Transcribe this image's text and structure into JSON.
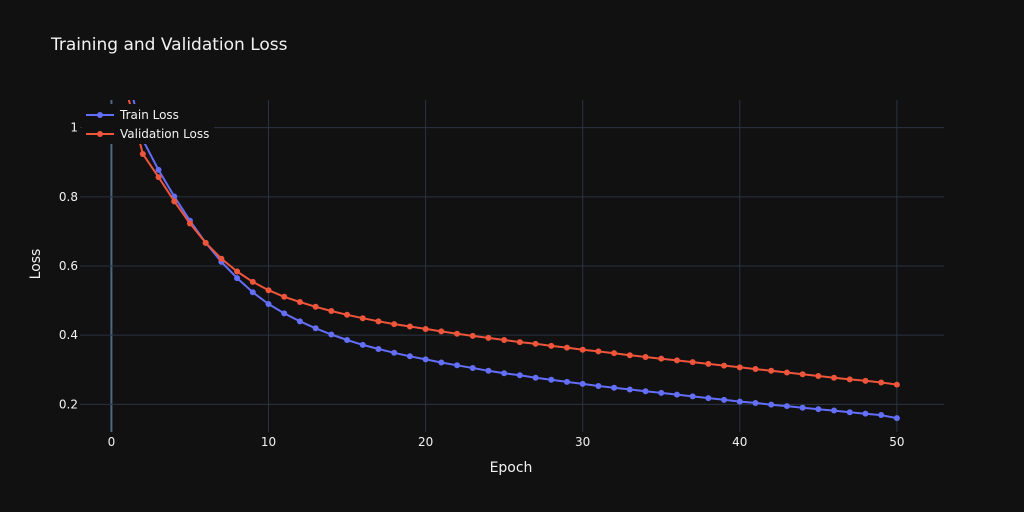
{
  "chart_data": {
    "type": "line",
    "title": "Training and Validation Loss",
    "xlabel": "Epoch",
    "ylabel": "Loss",
    "xlim": [
      -2,
      53
    ],
    "ylim": [
      0.12,
      1.08
    ],
    "xticks": [
      0,
      10,
      20,
      30,
      40,
      50
    ],
    "yticks": [
      0.2,
      0.4,
      0.6,
      0.8,
      1
    ],
    "ytick_labels": [
      "0.2",
      "0.4",
      "0.6",
      "0.8",
      "1"
    ],
    "grid": true,
    "legend_position": "top-left",
    "x": [
      1,
      2,
      3,
      4,
      5,
      6,
      7,
      8,
      9,
      10,
      11,
      12,
      13,
      14,
      15,
      16,
      17,
      18,
      19,
      20,
      21,
      22,
      23,
      24,
      25,
      26,
      27,
      28,
      29,
      30,
      31,
      32,
      33,
      34,
      35,
      36,
      37,
      38,
      39,
      40,
      41,
      42,
      43,
      44,
      45,
      46,
      47,
      48,
      49,
      50
    ],
    "series": [
      {
        "name": "Train Loss",
        "color": "#636efa",
        "values": [
          1.16,
          0.965,
          0.878,
          0.801,
          0.731,
          0.667,
          0.612,
          0.565,
          0.524,
          0.49,
          0.463,
          0.44,
          0.42,
          0.402,
          0.386,
          0.372,
          0.36,
          0.349,
          0.339,
          0.33,
          0.321,
          0.313,
          0.305,
          0.297,
          0.29,
          0.284,
          0.277,
          0.271,
          0.265,
          0.259,
          0.253,
          0.248,
          0.243,
          0.238,
          0.233,
          0.228,
          0.223,
          0.218,
          0.213,
          0.208,
          0.204,
          0.199,
          0.195,
          0.19,
          0.186,
          0.182,
          0.177,
          0.173,
          0.169,
          0.16
        ]
      },
      {
        "name": "Validation Loss",
        "color": "#ef553b",
        "values": [
          1.1,
          0.924,
          0.857,
          0.787,
          0.723,
          0.667,
          0.621,
          0.584,
          0.554,
          0.53,
          0.511,
          0.496,
          0.482,
          0.47,
          0.459,
          0.449,
          0.44,
          0.432,
          0.425,
          0.418,
          0.411,
          0.404,
          0.398,
          0.392,
          0.386,
          0.38,
          0.375,
          0.369,
          0.364,
          0.358,
          0.353,
          0.348,
          0.342,
          0.337,
          0.332,
          0.327,
          0.322,
          0.317,
          0.312,
          0.307,
          0.302,
          0.297,
          0.292,
          0.287,
          0.282,
          0.277,
          0.272,
          0.268,
          0.263,
          0.257
        ]
      }
    ]
  }
}
